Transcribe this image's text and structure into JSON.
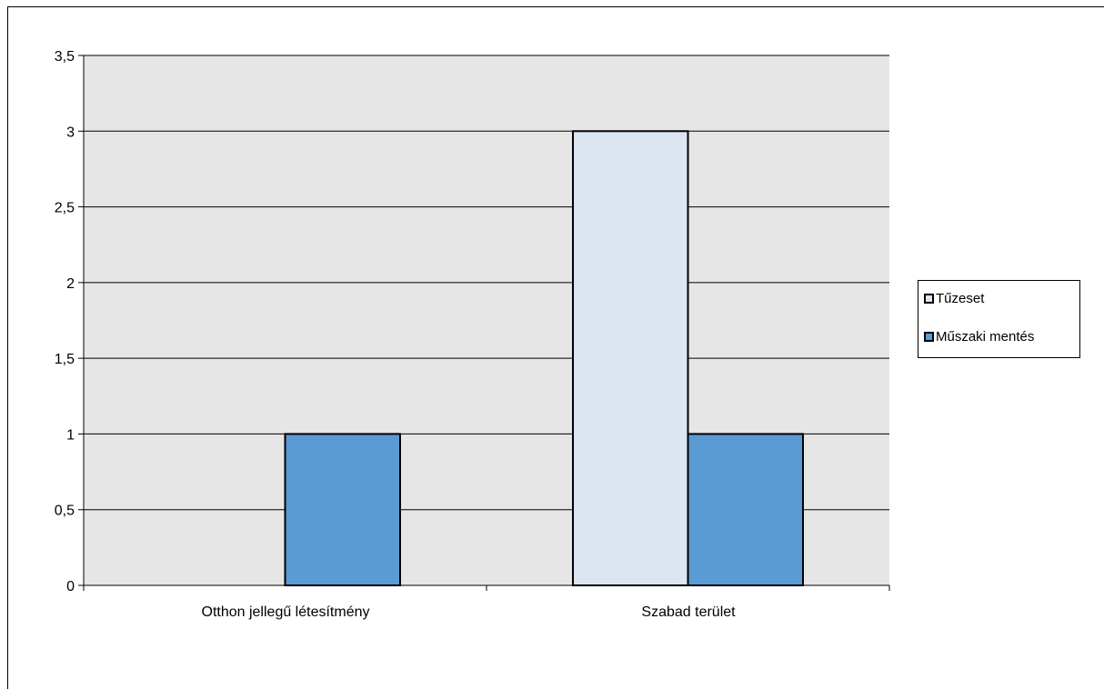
{
  "chart_data": {
    "type": "bar",
    "title": "",
    "xlabel": "",
    "ylabel": "",
    "categories": [
      "Otthon jellegű létesítmény",
      "Szabad terület"
    ],
    "series": [
      {
        "name": "Tűzeset",
        "values": [
          0,
          3
        ],
        "color": "#dce6f2"
      },
      {
        "name": "Műszaki mentés",
        "values": [
          1,
          1
        ],
        "color": "#5b9bd5"
      }
    ],
    "ylim": [
      0,
      3.5
    ],
    "yticks": [
      "0",
      "0,5",
      "1",
      "1,5",
      "2",
      "2,5",
      "3",
      "3,5"
    ],
    "plot_background": "#e6e6e6",
    "grid": true,
    "legend_position": "right"
  },
  "legend": {
    "items": [
      {
        "label": "Tűzeset"
      },
      {
        "label": "Műszaki mentés"
      }
    ]
  }
}
